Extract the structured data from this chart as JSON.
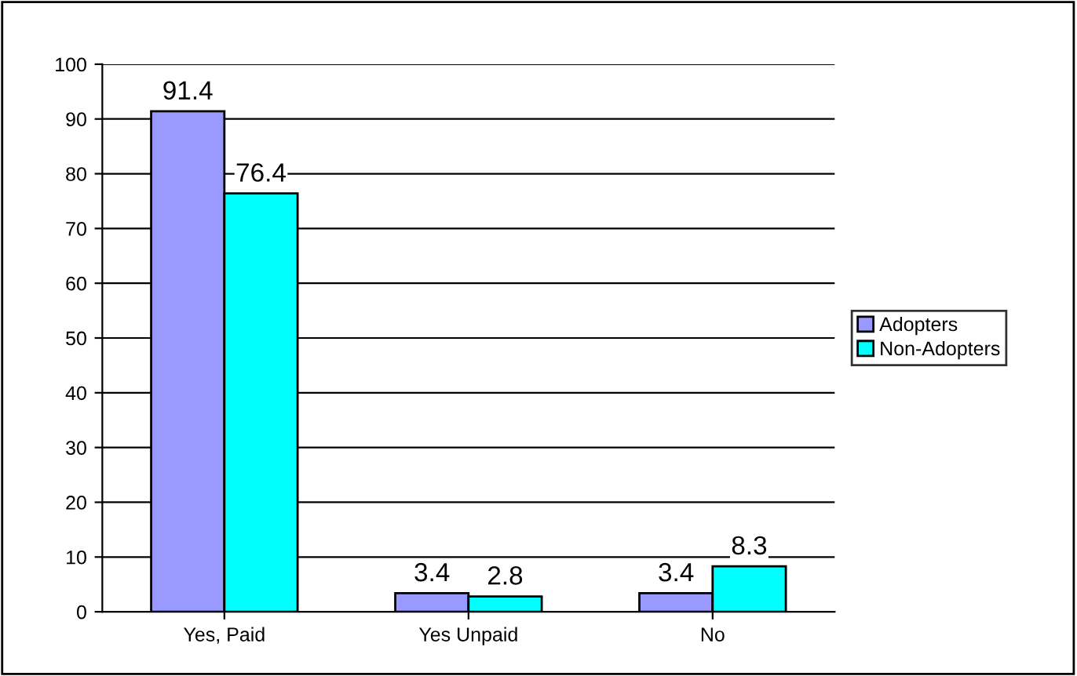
{
  "chart_data": {
    "type": "bar",
    "categories": [
      "Yes, Paid",
      "Yes Unpaid",
      "No"
    ],
    "series": [
      {
        "name": "Adopters",
        "color": "#9999ff",
        "values": [
          91.4,
          3.4,
          3.4
        ]
      },
      {
        "name": "Non-Adopters",
        "color": "#00ffff",
        "values": [
          76.4,
          2.8,
          8.3
        ]
      }
    ],
    "ylim": [
      0,
      100
    ],
    "yticks": [
      0,
      10,
      20,
      30,
      40,
      50,
      60,
      70,
      80,
      90,
      100
    ],
    "grid": "y",
    "legend": "right",
    "data_labels": true
  }
}
